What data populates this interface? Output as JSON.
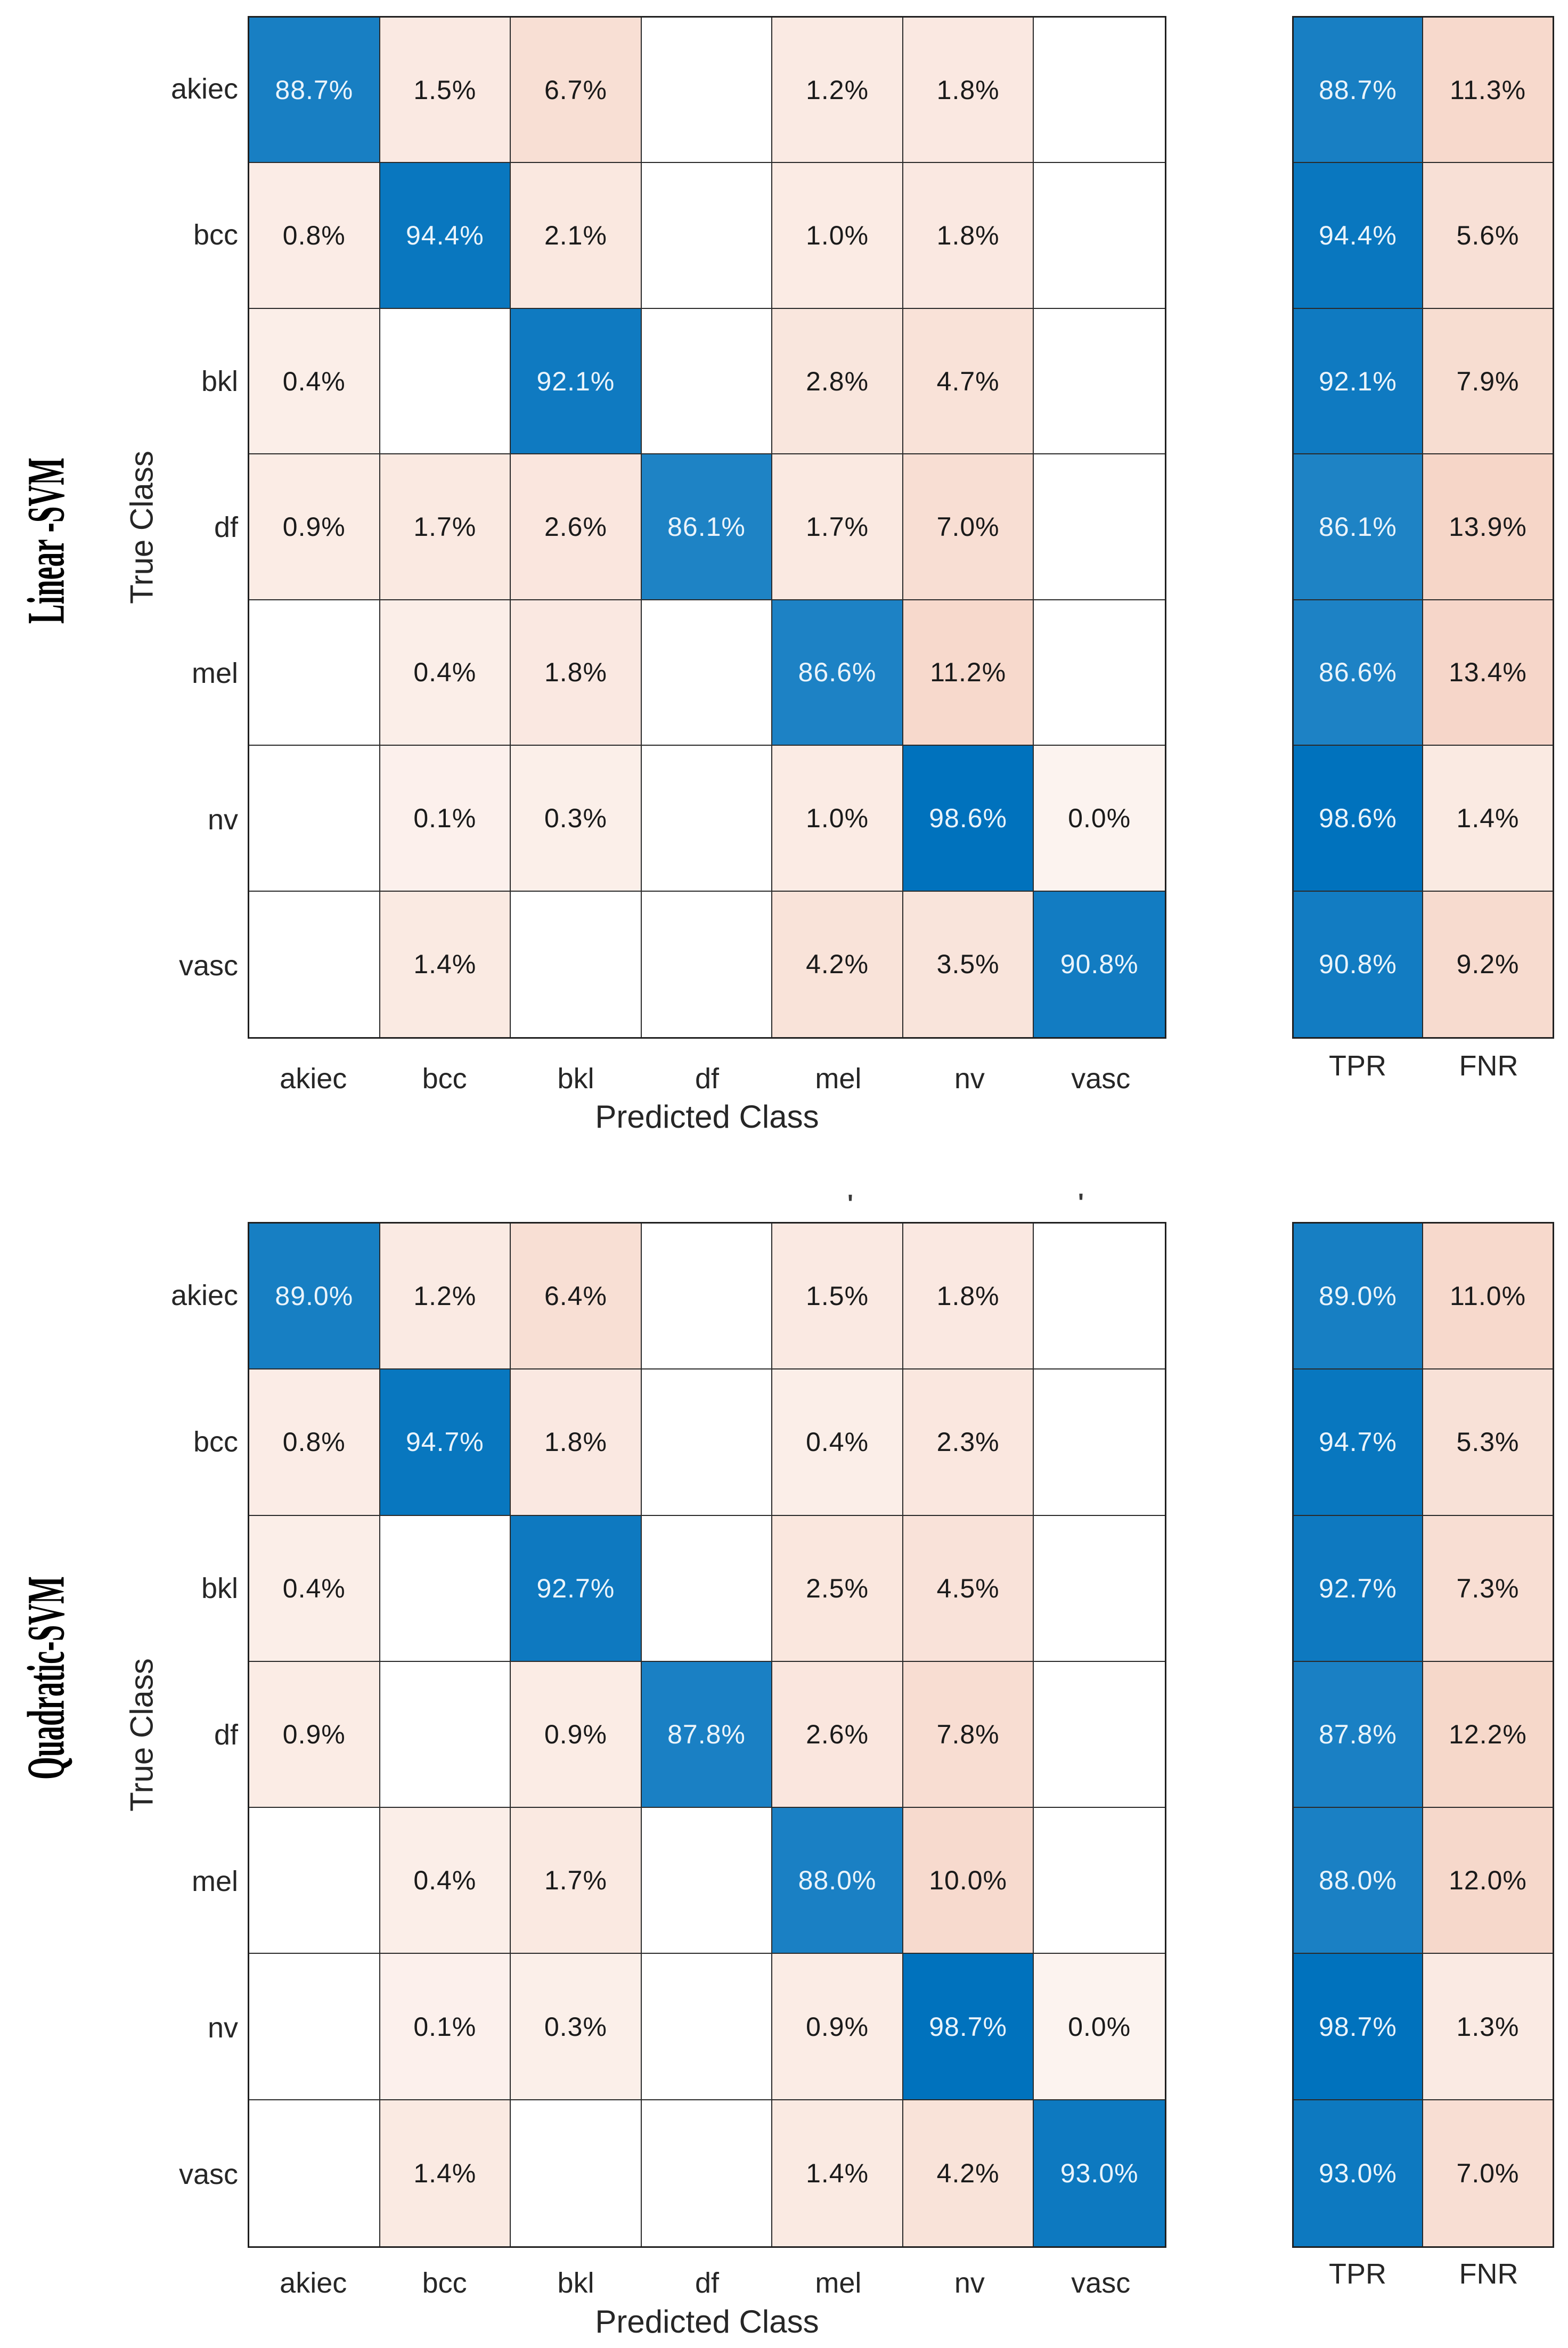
{
  "classes": [
    "akiec",
    "bcc",
    "bkl",
    "df",
    "mel",
    "nv",
    "vasc"
  ],
  "axis": {
    "x_label": "Predicted Class",
    "y_label": "True Class"
  },
  "summary_headers": [
    "TPR",
    "FNR"
  ],
  "colors": {
    "diagonal_base": "#0072BD",
    "offdiagonal_base": "#D95319",
    "empty_cell": "#FFFFFF",
    "grid_line": "#2A2A2A",
    "diagonal_text": "#EAF4FB",
    "offdiagonal_text": "#1A1A1A",
    "label_text": "#262626"
  },
  "artifacts": {
    "stray_marks": [
      "'",
      "'"
    ]
  },
  "chart_data": [
    {
      "type": "heatmap",
      "title": "Linear -SVM",
      "unit": "percent",
      "row_axis": "True Class",
      "col_axis": "Predicted Class",
      "categories": [
        "akiec",
        "bcc",
        "bkl",
        "df",
        "mel",
        "nv",
        "vasc"
      ],
      "matrix_percent": [
        [
          88.7,
          1.5,
          6.7,
          null,
          1.2,
          1.8,
          null
        ],
        [
          0.8,
          94.4,
          2.1,
          null,
          1.0,
          1.8,
          null
        ],
        [
          0.4,
          null,
          92.1,
          null,
          2.8,
          4.7,
          null
        ],
        [
          0.9,
          1.7,
          2.6,
          86.1,
          1.7,
          7.0,
          null
        ],
        [
          null,
          0.4,
          1.8,
          null,
          86.6,
          11.2,
          null
        ],
        [
          null,
          0.1,
          0.3,
          null,
          1.0,
          98.6,
          0.0
        ],
        [
          null,
          1.4,
          null,
          null,
          4.2,
          3.5,
          90.8
        ]
      ],
      "summary_columns": [
        "TPR",
        "FNR"
      ],
      "tpr_percent": [
        88.7,
        94.4,
        92.1,
        86.1,
        86.6,
        98.6,
        90.8
      ],
      "fnr_percent": [
        11.3,
        5.6,
        7.9,
        13.9,
        13.4,
        1.4,
        9.2
      ]
    },
    {
      "type": "heatmap",
      "title": "Quadratic-SVM",
      "unit": "percent",
      "row_axis": "True Class",
      "col_axis": "Predicted Class",
      "categories": [
        "akiec",
        "bcc",
        "bkl",
        "df",
        "mel",
        "nv",
        "vasc"
      ],
      "matrix_percent": [
        [
          89.0,
          1.2,
          6.4,
          null,
          1.5,
          1.8,
          null
        ],
        [
          0.8,
          94.7,
          1.8,
          null,
          0.4,
          2.3,
          null
        ],
        [
          0.4,
          null,
          92.7,
          null,
          2.5,
          4.5,
          null
        ],
        [
          0.9,
          null,
          0.9,
          87.8,
          2.6,
          7.8,
          null
        ],
        [
          null,
          0.4,
          1.7,
          null,
          88.0,
          10.0,
          null
        ],
        [
          null,
          0.1,
          0.3,
          null,
          0.9,
          98.7,
          0.0
        ],
        [
          null,
          1.4,
          null,
          null,
          1.4,
          4.2,
          93.0
        ]
      ],
      "summary_columns": [
        "TPR",
        "FNR"
      ],
      "tpr_percent": [
        89.0,
        94.7,
        92.7,
        87.8,
        88.0,
        98.7,
        93.0
      ],
      "fnr_percent": [
        11.0,
        5.3,
        7.3,
        12.2,
        12.0,
        1.3,
        7.0
      ]
    }
  ]
}
